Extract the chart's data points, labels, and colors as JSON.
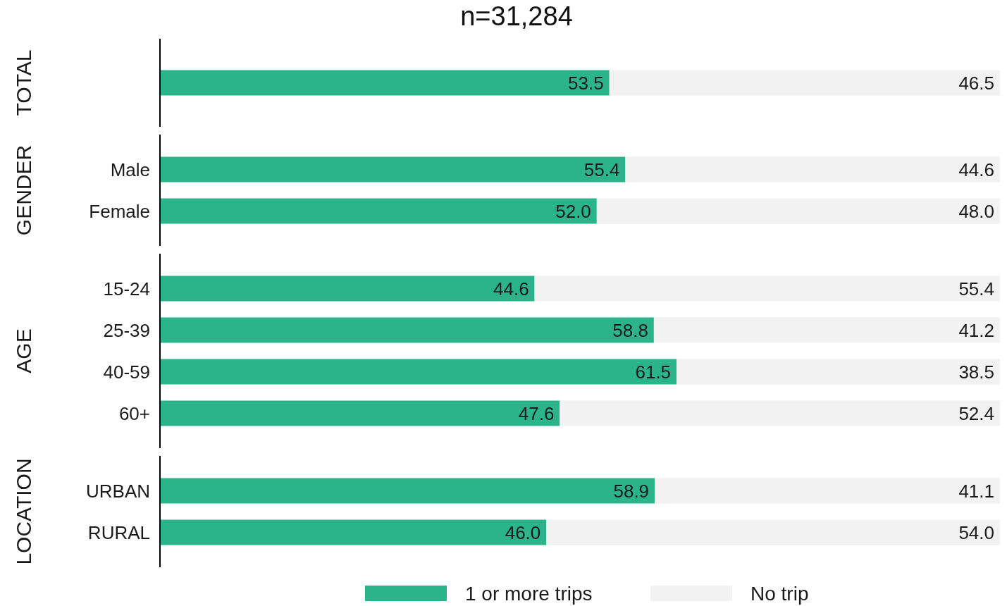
{
  "chart_data": [
    {
      "type": "bar",
      "orientation": "horizontal",
      "stacked": true,
      "title": "n=31,284",
      "ylabel": "TOTAL",
      "categories": [
        null
      ],
      "tick_labels": "y",
      "legend": false,
      "series": [
        {
          "color": "#2bb38a",
          "values": [
            53.5
          ],
          "value_labels": [
            "53.5"
          ]
        },
        {
          "color": "#f2f2f2",
          "values": [
            46.5
          ],
          "value_labels": [
            "46.5"
          ]
        }
      ]
    },
    {
      "type": "bar",
      "orientation": "horizontal",
      "stacked": true,
      "ylabel": "GENDER",
      "categories": [
        "Male",
        "Female"
      ],
      "tick_labels": "y",
      "legend": false,
      "series": [
        {
          "color": "#2bb38a",
          "values": [
            55.4,
            52.0
          ],
          "value_labels": [
            "55.4",
            "52.0"
          ]
        },
        {
          "color": "#f2f2f2",
          "values": [
            44.6,
            48.0
          ],
          "value_labels": [
            "44.6",
            "48.0"
          ]
        }
      ]
    },
    {
      "type": "bar",
      "orientation": "horizontal",
      "stacked": true,
      "ylabel": "AGE",
      "categories": [
        "15-24",
        "25-39",
        "40-59",
        "60+"
      ],
      "tick_labels": "y",
      "legend": false,
      "series": [
        {
          "color": "#2bb38a",
          "values": [
            44.6,
            58.8,
            61.5,
            47.6
          ],
          "value_labels": [
            "44.6",
            "58.8",
            "61.5",
            "47.6"
          ]
        },
        {
          "color": "#f2f2f2",
          "values": [
            55.4,
            41.2,
            38.5,
            52.4
          ],
          "value_labels": [
            "55.4",
            "41.2",
            "38.5",
            "52.4"
          ]
        }
      ]
    },
    {
      "type": "bar",
      "orientation": "horizontal",
      "stacked": true,
      "ylabel": "LOCATION",
      "categories": [
        "URBAN",
        "RURAL"
      ],
      "tick_labels": "y",
      "legend": "bottom",
      "series": [
        {
          "name": "1 or more trips",
          "color": "#2bb38a",
          "values": [
            58.9,
            46.0
          ],
          "value_labels": [
            "58.9",
            "46.0"
          ]
        },
        {
          "name": "No trip",
          "color": "#f2f2f2",
          "values": [
            41.1,
            54.0
          ],
          "value_labels": [
            "41.1",
            "54.0"
          ]
        }
      ]
    }
  ]
}
